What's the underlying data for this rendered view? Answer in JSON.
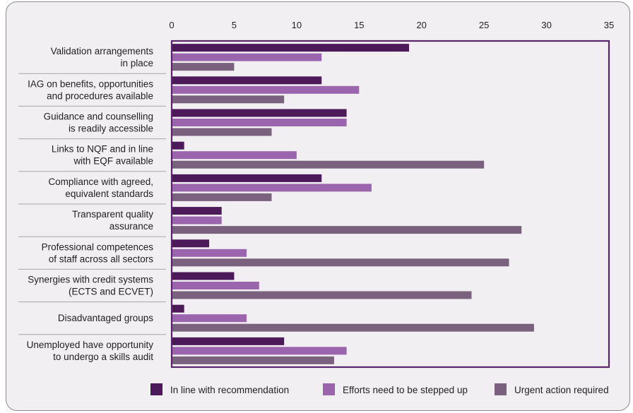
{
  "chart_data": {
    "type": "bar",
    "orientation": "horizontal",
    "xlim": [
      0,
      35
    ],
    "x_ticks": [
      "0",
      "5",
      "10",
      "15",
      "20",
      "25",
      "30",
      "35"
    ],
    "grid": false,
    "legend_position": "bottom",
    "categories": [
      [
        "Validation arrangements",
        "in place"
      ],
      [
        "IAG on benefits, opportunities",
        "and procedures available"
      ],
      [
        "Guidance and counselling",
        "is readily accessible"
      ],
      [
        "Links to NQF and in line",
        "with EQF available"
      ],
      [
        "Compliance with agreed,",
        "equivalent standards"
      ],
      [
        "Transparent quality",
        "assurance"
      ],
      [
        "Professional competences",
        "of staff across all sectors"
      ],
      [
        "Synergies with credit systems",
        "(ECTS and ECVET)"
      ],
      [
        "Disadvantaged groups"
      ],
      [
        "Unemployed have opportunity",
        "to undergo a skills audit"
      ]
    ],
    "series": [
      {
        "name": "In line with recommendation",
        "color": "#4d1a59",
        "values": [
          19,
          12,
          14,
          1,
          12,
          4,
          3,
          5,
          1,
          9
        ]
      },
      {
        "name": "Efforts need to be stepped up",
        "color": "#9b65ad",
        "values": [
          12,
          15,
          14,
          10,
          16,
          4,
          6,
          7,
          6,
          14
        ]
      },
      {
        "name": "Urgent action required",
        "color": "#7a617d",
        "values": [
          5,
          9,
          8,
          25,
          8,
          28,
          27,
          24,
          29,
          13
        ]
      }
    ],
    "colors": {
      "axis": "#5a2468"
    }
  }
}
